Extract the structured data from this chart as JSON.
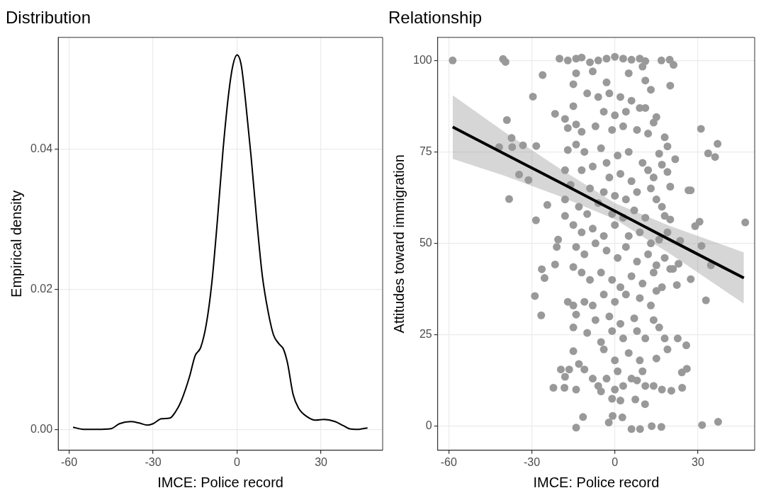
{
  "chart_data": [
    {
      "type": "line",
      "title": "Distribution",
      "xlabel": "IMCE: Police record",
      "ylabel": "Empirical density",
      "color": "#000000",
      "grid": true,
      "xlim": [
        -63.9,
        52
      ],
      "xticks": [
        -60,
        -30,
        0,
        30
      ],
      "ylim": [
        -0.003,
        0.056
      ],
      "yticks": [
        {
          "value": 0,
          "label": "0.00"
        },
        {
          "value": 0.02,
          "label": "0.02"
        },
        {
          "value": 0.04,
          "label": "0.04"
        }
      ],
      "x": [
        -58.6,
        -55,
        -50,
        -45,
        -42,
        -38,
        -35,
        -32,
        -30,
        -27,
        -24,
        -22,
        -20,
        -17,
        -15,
        -13,
        -11,
        -9,
        -7,
        -5,
        -3,
        -1.5,
        0,
        1.5,
        3,
        5,
        7,
        9,
        11,
        13,
        15,
        16.5,
        18,
        20,
        22,
        25,
        28,
        31,
        35,
        38,
        40,
        43,
        46.6
      ],
      "values": [
        0.0003,
        0,
        0,
        0.0001,
        0.0008,
        0.0011,
        0.0009,
        0.0006,
        0.0008,
        0.0015,
        0.0016,
        0.0025,
        0.004,
        0.0075,
        0.0105,
        0.0117,
        0.015,
        0.021,
        0.03,
        0.04,
        0.048,
        0.052,
        0.0535,
        0.052,
        0.047,
        0.039,
        0.03,
        0.022,
        0.017,
        0.0135,
        0.0122,
        0.0115,
        0.0095,
        0.005,
        0.003,
        0.0018,
        0.0013,
        0.0014,
        0.0011,
        0.0005,
        0.0001,
        0,
        0.0002
      ]
    },
    {
      "type": "scatter",
      "title": "Relationship",
      "xlabel": "IMCE: Police record",
      "ylabel": "Attitudes toward immigration",
      "grid": true,
      "xlim": [
        -64,
        50.5
      ],
      "xticks": [
        -60,
        -30,
        0,
        30
      ],
      "ylim": [
        -6.6,
        106.3
      ],
      "yticks": [
        0,
        25,
        50,
        75,
        100
      ],
      "series": [
        {
          "color": "#999999",
          "marker": "circle",
          "x": [
            -58.6,
            -40.4,
            -39.5,
            -26.1,
            -29.6,
            -39,
            -37.3,
            -41.8,
            -37.1,
            -33.2,
            -28.4,
            -34.6,
            -31.2,
            -38.2,
            -24.4,
            -28.5,
            -26.4,
            -25.4,
            -28.9,
            -26.6,
            -22.2,
            -18.2,
            -14,
            -11.5,
            -21.6,
            -21.6,
            -20.5,
            -21,
            16.8,
            19.8,
            21.2,
            20,
            31.1,
            37.1,
            33.7,
            36.2,
            21.8,
            26.6,
            27.4,
            47.1,
            30.6,
            29,
            31.3,
            34.7,
            27.4,
            22.4,
            32.9,
            23.6,
            23,
            25.8,
            26,
            24.2,
            24.3,
            22.7,
            31.5,
            37.3,
            16.8,
            13.3,
            20.4,
            10.9,
            6,
            9.1,
            2.7,
            -0.8,
            -2.2,
            7.4,
            -20,
            -17,
            -14,
            -12,
            -9,
            -6,
            -3,
            0,
            3,
            6,
            9,
            11,
            10,
            -14,
            -15,
            -8,
            -3,
            5,
            11,
            13,
            -10,
            -6,
            -2,
            2,
            6,
            -4,
            0,
            4,
            9,
            11,
            -15,
            -18,
            -14,
            -17,
            -12,
            -7,
            -1,
            3,
            8,
            14,
            15,
            12,
            18,
            -17,
            -14,
            -11,
            -5,
            -3,
            1,
            5,
            10,
            16,
            17,
            19,
            -18,
            -12,
            -8,
            -2,
            2,
            6,
            12,
            14,
            19,
            -16,
            -9,
            -4,
            0,
            4,
            8,
            13,
            15,
            17,
            20,
            -18,
            -13,
            -10,
            -6,
            -1,
            3,
            7,
            11,
            18,
            20,
            -18,
            -15,
            -12,
            -8,
            -4,
            0,
            5,
            9,
            13,
            16,
            19,
            -14,
            -11,
            -7,
            -3,
            1,
            4,
            8,
            12,
            15,
            18,
            20,
            -15,
            -12,
            -9,
            -5,
            -1,
            2,
            6,
            10,
            14,
            17,
            21,
            -17,
            -15,
            -11,
            -8,
            -4,
            0,
            4,
            9,
            13,
            15,
            -14,
            -7,
            -2,
            2,
            7,
            14,
            16,
            -15,
            -10,
            -5,
            -1,
            3,
            8,
            11,
            18,
            -15,
            -13,
            -4,
            0,
            5,
            9,
            15,
            19,
            -19.5,
            -16.5,
            -11,
            -3,
            1,
            6,
            10,
            -18,
            -8,
            -6,
            -14,
            -5,
            0,
            3,
            8,
            11,
            14,
            17,
            -1,
            2
          ],
          "values": [
            100,
            100.4,
            99.6,
            96,
            90.1,
            83.7,
            78.8,
            76.3,
            76.3,
            76.8,
            76.6,
            68.8,
            67.3,
            62.1,
            60.5,
            56.3,
            42.9,
            40.5,
            35.6,
            30.3,
            10.5,
            10.5,
            -0.4,
            2.5,
            85.4,
            44.2,
            51,
            49,
            100,
            100.2,
            98.8,
            93.1,
            81.3,
            77.2,
            74.6,
            73.6,
            73,
            64.5,
            64.5,
            55.7,
            55.9,
            54.7,
            49.3,
            44,
            40.2,
            38.6,
            34.4,
            50.7,
            44.4,
            22.1,
            15.7,
            14.7,
            10.5,
            24,
            0.3,
            1.2,
            -0.2,
            0,
            9.7,
            6,
            -0.8,
            -0.8,
            2.4,
            2.8,
            1,
            7.3,
            100.5,
            100,
            100.5,
            100.8,
            99.5,
            100,
            100.5,
            101,
            100.5,
            100.2,
            100.5,
            99.8,
            98.3,
            96.5,
            93.5,
            97,
            94,
            96.5,
            94.5,
            92,
            91,
            90,
            91,
            90,
            89,
            86,
            85,
            86,
            87,
            87,
            87.5,
            84,
            82.5,
            81.5,
            80.5,
            82,
            81,
            82,
            81,
            83,
            84.5,
            80,
            79,
            75.5,
            77,
            75,
            76,
            72,
            74,
            75,
            72,
            74.5,
            71.5,
            76.5,
            70,
            70,
            71,
            68,
            69,
            67,
            70,
            68,
            69.5,
            66,
            65,
            64,
            63,
            62,
            64,
            65,
            62,
            60,
            65.5,
            62,
            60,
            58,
            61,
            58,
            57,
            59,
            57,
            57.5,
            56.5,
            57.5,
            55,
            53,
            54,
            52,
            55,
            52,
            53,
            50,
            51,
            53,
            49,
            47,
            50,
            48,
            46,
            49,
            45,
            47,
            44,
            46,
            43,
            43.5,
            42,
            40,
            42,
            40,
            38,
            41,
            39,
            42,
            38,
            43,
            34,
            33,
            34,
            33,
            36,
            34,
            36,
            35,
            33,
            37,
            30.5,
            29,
            30,
            28,
            29.5,
            29,
            27,
            27,
            25.5,
            23,
            26,
            24,
            26,
            24,
            24,
            20.5,
            17,
            21,
            18,
            20,
            18,
            18.5,
            21,
            15.5,
            15.5,
            15.5,
            13,
            15,
            13,
            15,
            13.5,
            13,
            11,
            10,
            9.5,
            10,
            11,
            12.5,
            11,
            11,
            10,
            7.5,
            7
          ]
        },
        {
          "type": "line",
          "color": "#000000",
          "x": [
            -58.6,
            -40,
            -20,
            0,
            20,
            46.6
          ],
          "values": [
            81.8,
            74.5,
            66.7,
            58.8,
            50.9,
            40.5
          ],
          "lower": [
            73.1,
            68.5,
            62.9,
            56.6,
            47.1,
            33.5
          ],
          "upper": [
            90.5,
            80.5,
            70.5,
            61,
            54.7,
            47.5
          ]
        }
      ]
    }
  ]
}
